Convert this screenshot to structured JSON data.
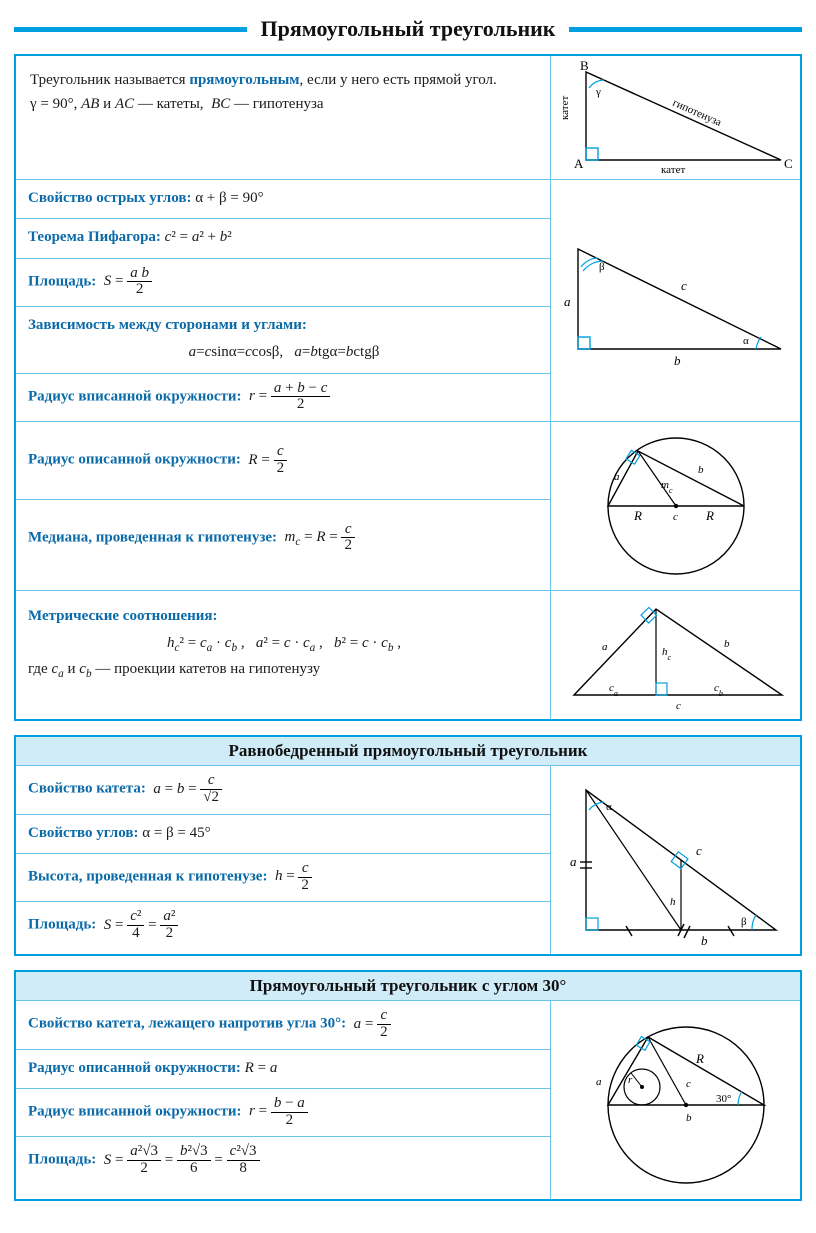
{
  "colors": {
    "cyan": "#00a0e0",
    "cyan_light": "#d0ecf8",
    "row_border": "#6cc2e6",
    "text": "#1b1b1b",
    "blue": "#0b6aa8",
    "black": "#000000",
    "white": "#ffffff"
  },
  "page_title": "Прямоугольный треугольник",
  "panel1": {
    "definition": {
      "line1_pre": "Треугольник называется ",
      "term": "прямоугольным",
      "line1_post": ", если у него есть прямой угол.",
      "line2": "γ = 90°, AB и AC — катеты, BC — гипотенуза"
    },
    "fig1": {
      "pts": {
        "A": "A",
        "B": "B",
        "C": "C"
      },
      "labels": {
        "hyp": "гипотенуза",
        "leg_v": "катет",
        "leg_h": "катет",
        "gamma": "γ"
      }
    },
    "rows_group_b": [
      {
        "label": "Свойство острых углов:",
        "eq": "α + β = 90°"
      },
      {
        "label": "Теорема Пифагора:",
        "eq": "c² = a² + b²"
      },
      {
        "label": "Площадь:",
        "eq_html": "<i class='m'>S</i> = <span class='frac'><span class='n'><i class='m'>a b</i></span><span class='d'>2</span></span>"
      },
      {
        "label": "Зависимость между сторонами и углами:",
        "eq_block": "a = c sinα = c cosβ,   a = b tgα = b ctgβ"
      },
      {
        "label": "Радиус вписанной окружности:",
        "eq_html": "<i class='m'>r</i> = <span class='frac'><span class='n'><i class='m'>a</i> + <i class='m'>b</i> − <i class='m'>c</i></span><span class='d'>2</span></span>"
      }
    ],
    "fig2": {
      "labels": {
        "a": "a",
        "b": "b",
        "c": "c",
        "alpha": "α",
        "beta": "β"
      }
    },
    "rows_group_c": [
      {
        "label": "Радиус описанной окружности:",
        "eq_html": "<i class='m'>R</i> = <span class='frac'><span class='n'><i class='m'>c</i></span><span class='d'>2</span></span>"
      },
      {
        "label": "Медиана, проведенная к гипотенузе:",
        "eq_html": "<i class='m'>m<sub>c</sub></i> = <i class='m'>R</i> = <span class='frac'><span class='n'><i class='m'>c</i></span><span class='d'>2</span></span>"
      }
    ],
    "fig3": {
      "labels": {
        "a": "a",
        "b": "b",
        "mc": "m_c",
        "R": "R",
        "c": "c"
      }
    },
    "rows_group_d": {
      "label": "Метрические соотношения:",
      "eq": "h_c² = c_a · c_b ,   a² = c · c_a ,   b² = c · c_b ,",
      "note": "где c_a и c_b — проекции катетов на гипотенузу"
    },
    "fig4": {
      "labels": {
        "a": "a",
        "b": "b",
        "hc": "h_c",
        "ca": "c_a",
        "cb": "c_b",
        "c": "c"
      }
    }
  },
  "panel2": {
    "title": "Равнобедренный прямоугольный треугольник",
    "rows": [
      {
        "label": "Свойство катета:",
        "eq_html": "<i class='m'>a</i> = <i class='m'>b</i> = <span class='frac'><span class='n'><i class='m'>c</i></span><span class='d'>√2</span></span>"
      },
      {
        "label": "Свойство углов:",
        "eq": "α = β = 45°"
      },
      {
        "label": "Высота, проведенная к гипотенузе:",
        "eq_html": "<i class='m'>h</i> = <span class='frac'><span class='n'><i class='m'>c</i></span><span class='d'>2</span></span>"
      },
      {
        "label": "Площадь:",
        "eq_html": "<i class='m'>S</i> = <span class='frac'><span class='n'><i class='m'>c</i>²</span><span class='d'>4</span></span> = <span class='frac'><span class='n'><i class='m'>a</i>²</span><span class='d'>2</span></span>"
      }
    ],
    "fig": {
      "labels": {
        "a": "a",
        "b": "b",
        "c": "c",
        "h": "h",
        "alpha": "α",
        "beta": "β"
      }
    }
  },
  "panel3": {
    "title": "Прямоугольный треугольник с углом 30°",
    "rows": [
      {
        "label": "Свойство катета, лежащего напротив угла 30°:",
        "eq_html": "<i class='m'>a</i> = <span class='frac'><span class='n'><i class='m'>c</i></span><span class='d'>2</span></span>"
      },
      {
        "label": "Радиус описанной окружности:",
        "eq": "R = a"
      },
      {
        "label": "Радиус вписанной окружности:",
        "eq_html": "<i class='m'>r</i> = <span class='frac'><span class='n'><i class='m'>b</i> − <i class='m'>a</i></span><span class='d'>2</span></span>"
      },
      {
        "label": "Площадь:",
        "eq_html": "<i class='m'>S</i> = <span class='frac'><span class='n'><i class='m'>a</i>²√3</span><span class='d'>2</span></span> = <span class='frac'><span class='n'><i class='m'>b</i>²√3</span><span class='d'>6</span></span> = <span class='frac'><span class='n'><i class='m'>c</i>²√3</span><span class='d'>8</span></span>"
      }
    ],
    "fig": {
      "labels": {
        "a": "a",
        "b": "b",
        "c": "c",
        "r": "r",
        "R": "R",
        "angle": "30°"
      }
    }
  }
}
